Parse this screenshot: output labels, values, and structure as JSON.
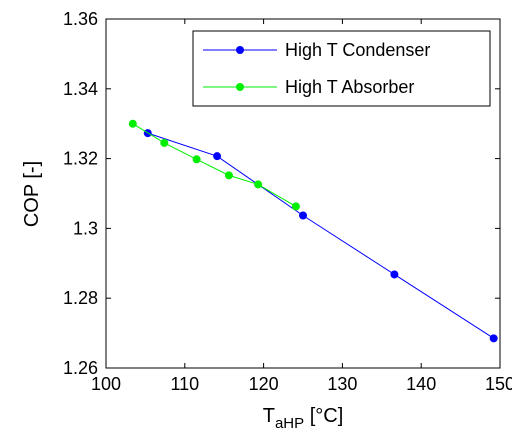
{
  "chart_data": {
    "type": "line",
    "xlabel": {
      "main": "T",
      "sub": "aHP",
      "unit": " [°C]"
    },
    "ylabel": "COP [-]",
    "xlim": [
      100,
      150
    ],
    "ylim": [
      1.26,
      1.36
    ],
    "xticks": [
      "100",
      "110",
      "120",
      "130",
      "140",
      "150"
    ],
    "yticks": [
      "1.26",
      "1.28",
      "1.3",
      "1.32",
      "1.34",
      "1.36"
    ],
    "grid": false,
    "legend_position": "top-right",
    "series": [
      {
        "name": "High T Condenser",
        "color": "#0000ff",
        "x": [
          105.3,
          114.1,
          125.0,
          136.6,
          149.2
        ],
        "y": [
          1.3273,
          1.3207,
          1.3037,
          1.2868,
          1.2685
        ]
      },
      {
        "name": "High T Absorber",
        "color": "#00ee00",
        "x": [
          103.4,
          107.4,
          111.5,
          115.6,
          119.3,
          124.1
        ],
        "y": [
          1.33,
          1.3245,
          1.3198,
          1.3152,
          1.3126,
          1.3063
        ]
      }
    ]
  }
}
